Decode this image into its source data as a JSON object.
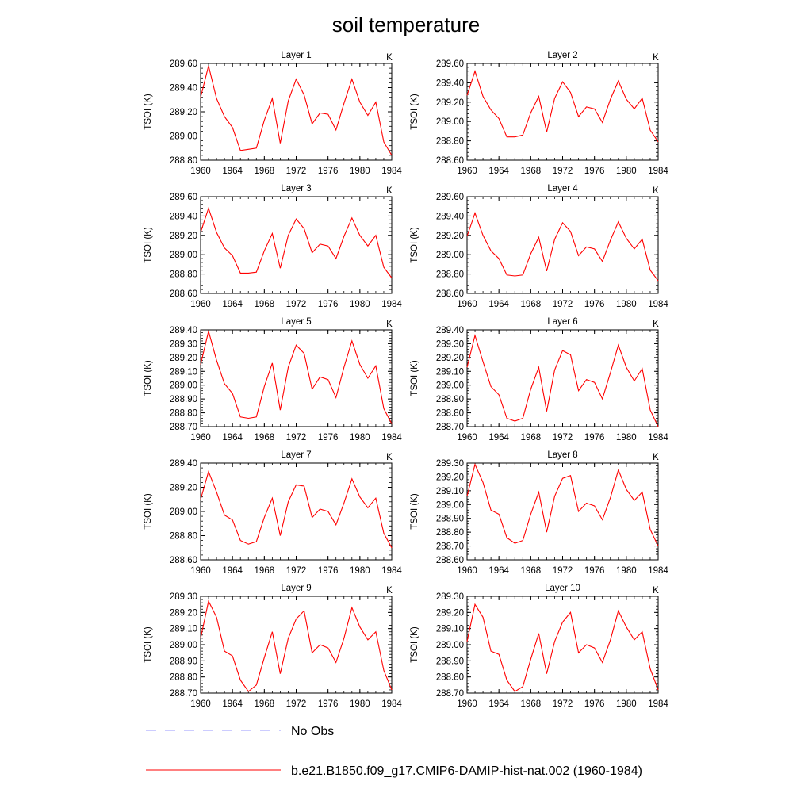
{
  "title": "soil temperature",
  "unit_label": "K",
  "ylabel": "TSOI  (K)",
  "colors": {
    "model": "#ff0000",
    "obs": "#9999ff",
    "axis": "#000000"
  },
  "legend": [
    {
      "label": "No Obs",
      "style": "dashed",
      "color": "#9999ff"
    },
    {
      "label": "b.e21.B1850.f09_g17.CMIP6-DAMIP-hist-nat.002 (1960-1984)",
      "style": "solid",
      "color": "#ff0000"
    }
  ],
  "chart_data": [
    {
      "type": "line",
      "title": "Layer 1",
      "xlim": [
        1960,
        1984
      ],
      "xticks": [
        1960,
        1964,
        1968,
        1972,
        1976,
        1980,
        1984
      ],
      "ylim": [
        288.8,
        289.6
      ],
      "yticks": [
        "288.80",
        "289.00",
        "289.20",
        "289.40",
        "289.60"
      ],
      "x": [
        1960,
        1961,
        1962,
        1963,
        1964,
        1965,
        1966,
        1967,
        1968,
        1969,
        1970,
        1971,
        1972,
        1973,
        1974,
        1975,
        1976,
        1977,
        1978,
        1979,
        1980,
        1981,
        1982,
        1983,
        1984
      ],
      "series": [
        {
          "values": [
            289.32,
            289.58,
            289.31,
            289.16,
            289.07,
            288.88,
            288.89,
            288.9,
            289.13,
            289.31,
            288.94,
            289.29,
            289.47,
            289.34,
            289.1,
            289.19,
            289.18,
            289.05,
            289.27,
            289.47,
            289.28,
            289.17,
            289.28,
            288.95,
            288.84
          ]
        }
      ]
    },
    {
      "type": "line",
      "title": "Layer 2",
      "xlim": [
        1960,
        1984
      ],
      "xticks": [
        1960,
        1964,
        1968,
        1972,
        1976,
        1980,
        1984
      ],
      "ylim": [
        288.6,
        289.6
      ],
      "yticks": [
        "288.60",
        "288.80",
        "289.00",
        "289.20",
        "289.40",
        "289.60"
      ],
      "x": [
        1960,
        1961,
        1962,
        1963,
        1964,
        1965,
        1966,
        1967,
        1968,
        1969,
        1970,
        1971,
        1972,
        1973,
        1974,
        1975,
        1976,
        1977,
        1978,
        1979,
        1980,
        1981,
        1982,
        1983,
        1984
      ],
      "series": [
        {
          "values": [
            289.27,
            289.52,
            289.26,
            289.12,
            289.03,
            288.84,
            288.84,
            288.86,
            289.09,
            289.26,
            288.89,
            289.24,
            289.41,
            289.3,
            289.05,
            289.15,
            289.13,
            288.99,
            289.23,
            289.42,
            289.23,
            289.13,
            289.24,
            288.91,
            288.79
          ]
        }
      ]
    },
    {
      "type": "line",
      "title": "Layer 3",
      "xlim": [
        1960,
        1984
      ],
      "xticks": [
        1960,
        1964,
        1968,
        1972,
        1976,
        1980,
        1984
      ],
      "ylim": [
        288.6,
        289.6
      ],
      "yticks": [
        "288.60",
        "288.80",
        "289.00",
        "289.20",
        "289.40",
        "289.60"
      ],
      "x": [
        1960,
        1961,
        1962,
        1963,
        1964,
        1965,
        1966,
        1967,
        1968,
        1969,
        1970,
        1971,
        1972,
        1973,
        1974,
        1975,
        1976,
        1977,
        1978,
        1979,
        1980,
        1981,
        1982,
        1983,
        1984
      ],
      "series": [
        {
          "values": [
            289.23,
            289.48,
            289.23,
            289.07,
            288.99,
            288.81,
            288.81,
            288.82,
            289.04,
            289.22,
            288.86,
            289.2,
            289.37,
            289.27,
            289.02,
            289.11,
            289.09,
            288.96,
            289.19,
            289.38,
            289.2,
            289.09,
            289.2,
            288.87,
            288.76
          ]
        }
      ]
    },
    {
      "type": "line",
      "title": "Layer 4",
      "xlim": [
        1960,
        1984
      ],
      "xticks": [
        1960,
        1964,
        1968,
        1972,
        1976,
        1980,
        1984
      ],
      "ylim": [
        288.6,
        289.6
      ],
      "yticks": [
        "288.60",
        "288.80",
        "289.00",
        "289.20",
        "289.40",
        "289.60"
      ],
      "x": [
        1960,
        1961,
        1962,
        1963,
        1964,
        1965,
        1966,
        1967,
        1968,
        1969,
        1970,
        1971,
        1972,
        1973,
        1974,
        1975,
        1976,
        1977,
        1978,
        1979,
        1980,
        1981,
        1982,
        1983,
        1984
      ],
      "series": [
        {
          "values": [
            289.19,
            289.43,
            289.2,
            289.04,
            288.96,
            288.79,
            288.78,
            288.79,
            289.01,
            289.18,
            288.83,
            289.16,
            289.33,
            289.24,
            288.99,
            289.08,
            289.06,
            288.93,
            289.15,
            289.34,
            289.17,
            289.06,
            289.16,
            288.84,
            288.73
          ]
        }
      ]
    },
    {
      "type": "line",
      "title": "Layer 5",
      "xlim": [
        1960,
        1984
      ],
      "xticks": [
        1960,
        1964,
        1968,
        1972,
        1976,
        1980,
        1984
      ],
      "ylim": [
        288.7,
        289.4
      ],
      "yticks": [
        "288.70",
        "288.80",
        "288.90",
        "289.00",
        "289.10",
        "289.20",
        "289.30",
        "289.40"
      ],
      "x": [
        1960,
        1961,
        1962,
        1963,
        1964,
        1965,
        1966,
        1967,
        1968,
        1969,
        1970,
        1971,
        1972,
        1973,
        1974,
        1975,
        1976,
        1977,
        1978,
        1979,
        1980,
        1981,
        1982,
        1983,
        1984
      ],
      "series": [
        {
          "values": [
            289.15,
            289.39,
            289.18,
            289.01,
            288.94,
            288.77,
            288.76,
            288.77,
            288.99,
            289.16,
            288.82,
            289.13,
            289.29,
            289.23,
            288.97,
            289.06,
            289.04,
            288.91,
            289.13,
            289.32,
            289.15,
            289.05,
            289.14,
            288.83,
            288.72
          ]
        }
      ]
    },
    {
      "type": "line",
      "title": "Layer 6",
      "xlim": [
        1960,
        1984
      ],
      "xticks": [
        1960,
        1964,
        1968,
        1972,
        1976,
        1980,
        1984
      ],
      "ylim": [
        288.7,
        289.4
      ],
      "yticks": [
        "288.70",
        "288.80",
        "288.90",
        "289.00",
        "289.10",
        "289.20",
        "289.30",
        "289.40"
      ],
      "x": [
        1960,
        1961,
        1962,
        1963,
        1964,
        1965,
        1966,
        1967,
        1968,
        1969,
        1970,
        1971,
        1972,
        1973,
        1974,
        1975,
        1976,
        1977,
        1978,
        1979,
        1980,
        1981,
        1982,
        1983,
        1984
      ],
      "series": [
        {
          "values": [
            289.13,
            289.36,
            289.17,
            288.99,
            288.93,
            288.76,
            288.74,
            288.76,
            288.97,
            289.13,
            288.81,
            289.11,
            289.25,
            289.22,
            288.96,
            289.04,
            289.02,
            288.9,
            289.09,
            289.29,
            289.13,
            289.03,
            289.12,
            288.82,
            288.7
          ]
        }
      ]
    },
    {
      "type": "line",
      "title": "Layer 7",
      "xlim": [
        1960,
        1984
      ],
      "xticks": [
        1960,
        1964,
        1968,
        1972,
        1976,
        1980,
        1984
      ],
      "ylim": [
        288.6,
        289.4
      ],
      "yticks": [
        "288.60",
        "288.80",
        "289.00",
        "289.20",
        "289.40"
      ],
      "x": [
        1960,
        1961,
        1962,
        1963,
        1964,
        1965,
        1966,
        1967,
        1968,
        1969,
        1970,
        1971,
        1972,
        1973,
        1974,
        1975,
        1976,
        1977,
        1978,
        1979,
        1980,
        1981,
        1982,
        1983,
        1984
      ],
      "series": [
        {
          "values": [
            289.1,
            289.33,
            289.16,
            288.97,
            288.93,
            288.76,
            288.73,
            288.75,
            288.95,
            289.11,
            288.8,
            289.08,
            289.22,
            289.21,
            288.95,
            289.02,
            289.0,
            288.89,
            289.07,
            289.27,
            289.12,
            289.03,
            289.11,
            288.82,
            288.7
          ]
        }
      ]
    },
    {
      "type": "line",
      "title": "Layer 8",
      "xlim": [
        1960,
        1984
      ],
      "xticks": [
        1960,
        1964,
        1968,
        1972,
        1976,
        1980,
        1984
      ],
      "ylim": [
        288.6,
        289.3
      ],
      "yticks": [
        "288.60",
        "288.70",
        "288.80",
        "288.90",
        "289.00",
        "289.10",
        "289.20",
        "289.30"
      ],
      "x": [
        1960,
        1961,
        1962,
        1963,
        1964,
        1965,
        1966,
        1967,
        1968,
        1969,
        1970,
        1971,
        1972,
        1973,
        1974,
        1975,
        1976,
        1977,
        1978,
        1979,
        1980,
        1981,
        1982,
        1983,
        1984
      ],
      "series": [
        {
          "values": [
            289.06,
            289.29,
            289.16,
            288.96,
            288.93,
            288.76,
            288.72,
            288.74,
            288.93,
            289.09,
            288.8,
            289.06,
            289.19,
            289.21,
            288.95,
            289.01,
            288.99,
            288.89,
            289.05,
            289.25,
            289.11,
            289.03,
            289.09,
            288.82,
            288.7
          ]
        }
      ]
    },
    {
      "type": "line",
      "title": "Layer 9",
      "xlim": [
        1960,
        1984
      ],
      "xticks": [
        1960,
        1964,
        1968,
        1972,
        1976,
        1980,
        1984
      ],
      "ylim": [
        288.7,
        289.3
      ],
      "yticks": [
        "288.70",
        "288.80",
        "288.90",
        "289.00",
        "289.10",
        "289.20",
        "289.30"
      ],
      "x": [
        1960,
        1961,
        1962,
        1963,
        1964,
        1965,
        1966,
        1967,
        1968,
        1969,
        1970,
        1971,
        1972,
        1973,
        1974,
        1975,
        1976,
        1977,
        1978,
        1979,
        1980,
        1981,
        1982,
        1983,
        1984
      ],
      "series": [
        {
          "values": [
            289.04,
            289.27,
            289.17,
            288.96,
            288.93,
            288.78,
            288.71,
            288.75,
            288.92,
            289.08,
            288.82,
            289.04,
            289.16,
            289.21,
            288.95,
            289.0,
            288.98,
            288.89,
            289.04,
            289.23,
            289.11,
            289.03,
            289.08,
            288.84,
            288.72
          ]
        }
      ]
    },
    {
      "type": "line",
      "title": "Layer 10",
      "xlim": [
        1960,
        1984
      ],
      "xticks": [
        1960,
        1964,
        1968,
        1972,
        1976,
        1980,
        1984
      ],
      "ylim": [
        288.7,
        289.3
      ],
      "yticks": [
        "288.70",
        "288.80",
        "288.90",
        "289.00",
        "289.10",
        "289.20",
        "289.30"
      ],
      "x": [
        1960,
        1961,
        1962,
        1963,
        1964,
        1965,
        1966,
        1967,
        1968,
        1969,
        1970,
        1971,
        1972,
        1973,
        1974,
        1975,
        1976,
        1977,
        1978,
        1979,
        1980,
        1981,
        1982,
        1983,
        1984
      ],
      "series": [
        {
          "values": [
            289.02,
            289.25,
            289.17,
            288.96,
            288.94,
            288.78,
            288.71,
            288.74,
            288.91,
            289.07,
            288.82,
            289.02,
            289.14,
            289.2,
            288.95,
            289.0,
            288.98,
            288.89,
            289.03,
            289.21,
            289.11,
            289.03,
            289.08,
            288.85,
            288.72
          ]
        }
      ]
    }
  ]
}
